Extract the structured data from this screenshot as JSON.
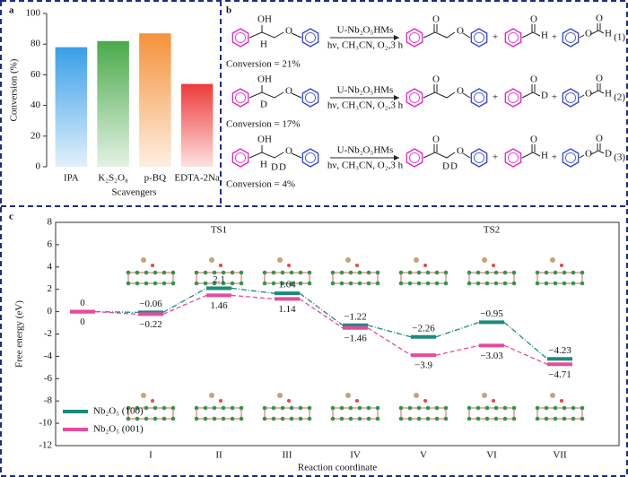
{
  "chart_data": [
    {
      "type": "bar",
      "label": "a",
      "categories": [
        "IPA",
        "K₂S₂O₈",
        "p-BQ",
        "EDTA-2Na"
      ],
      "values": [
        78,
        82,
        87,
        54
      ],
      "colors": [
        "#3a9ee8",
        "#4aaa4a",
        "#f5923a",
        "#ee3a3a"
      ],
      "ylabel": "Conversion (%)",
      "xlabel": "Scavengers",
      "ylim": [
        0,
        100
      ],
      "yticks": [
        0,
        20,
        40,
        60,
        80,
        100
      ]
    },
    {
      "type": "energy",
      "label": "c",
      "categories": [
        null,
        "I",
        "II",
        "III",
        "IV",
        "V",
        "VI",
        "VII"
      ],
      "series": [
        {
          "name": "Nb₂O₅ (100)",
          "color": "#1a8a80",
          "values": [
            0,
            -0.06,
            2.1,
            1.64,
            -1.22,
            -2.26,
            -0.95,
            -4.23
          ],
          "value_labels": [
            "0",
            "−0.06",
            "2.1",
            "1.64",
            "−1.22",
            "−2.26",
            "−0.95",
            "−4.23"
          ]
        },
        {
          "name": "Nb₂O₅ (001)",
          "color": "#e84a9c",
          "values": [
            0,
            -0.22,
            1.46,
            1.14,
            -1.46,
            -3.9,
            -3.03,
            -4.71
          ],
          "value_labels": [
            "0",
            "−0.22",
            "1.46",
            "1.14",
            "−1.46",
            "−3.9",
            "−3.03",
            "−4.71"
          ]
        }
      ],
      "annotations": [
        {
          "text": "TS1",
          "category": 2
        },
        {
          "text": "TS2",
          "category": 6
        }
      ],
      "ylabel": "Free energy (eV)",
      "xlabel": "Reaction coordinate",
      "ylim": [
        -12,
        8
      ],
      "yticks": [
        -12,
        -10,
        -8,
        -6,
        -4,
        -2,
        0,
        2,
        4,
        6,
        8
      ],
      "legend": "lower left"
    }
  ],
  "scheme": {
    "label": "b",
    "plus": "+",
    "oxygen": "O",
    "reactions": [
      {
        "number": "(1)",
        "catalyst": "U-Nb₂O₅HMs",
        "conditions": "hν, CH₃CN, O₂,3 h",
        "conversion": "Conversion = 21%",
        "reactant_atoms": [
          "OH",
          "H"
        ],
        "ketone_atoms": [],
        "aldehyde_atom": "H",
        "formate_atom": "H"
      },
      {
        "number": "(2)",
        "catalyst": "U-Nb₂O₅HMs",
        "conditions": "hν, CH₃CN, O₂,3 h",
        "conversion": "Conversion = 17%",
        "reactant_atoms": [
          "OH",
          "D"
        ],
        "ketone_atoms": [],
        "aldehyde_atom": "D",
        "formate_atom": "H"
      },
      {
        "number": "(3)",
        "catalyst": "U-Nb₂O₅HMs",
        "conditions": "hν, CH₃CN, O₂,3 h",
        "conversion": "Conversion = 4%",
        "reactant_atoms": [
          "OH",
          "H",
          "D",
          "D"
        ],
        "ketone_atoms": [
          "D",
          "D"
        ],
        "aldehyde_atom": "H",
        "formate_atom": "D"
      }
    ]
  }
}
